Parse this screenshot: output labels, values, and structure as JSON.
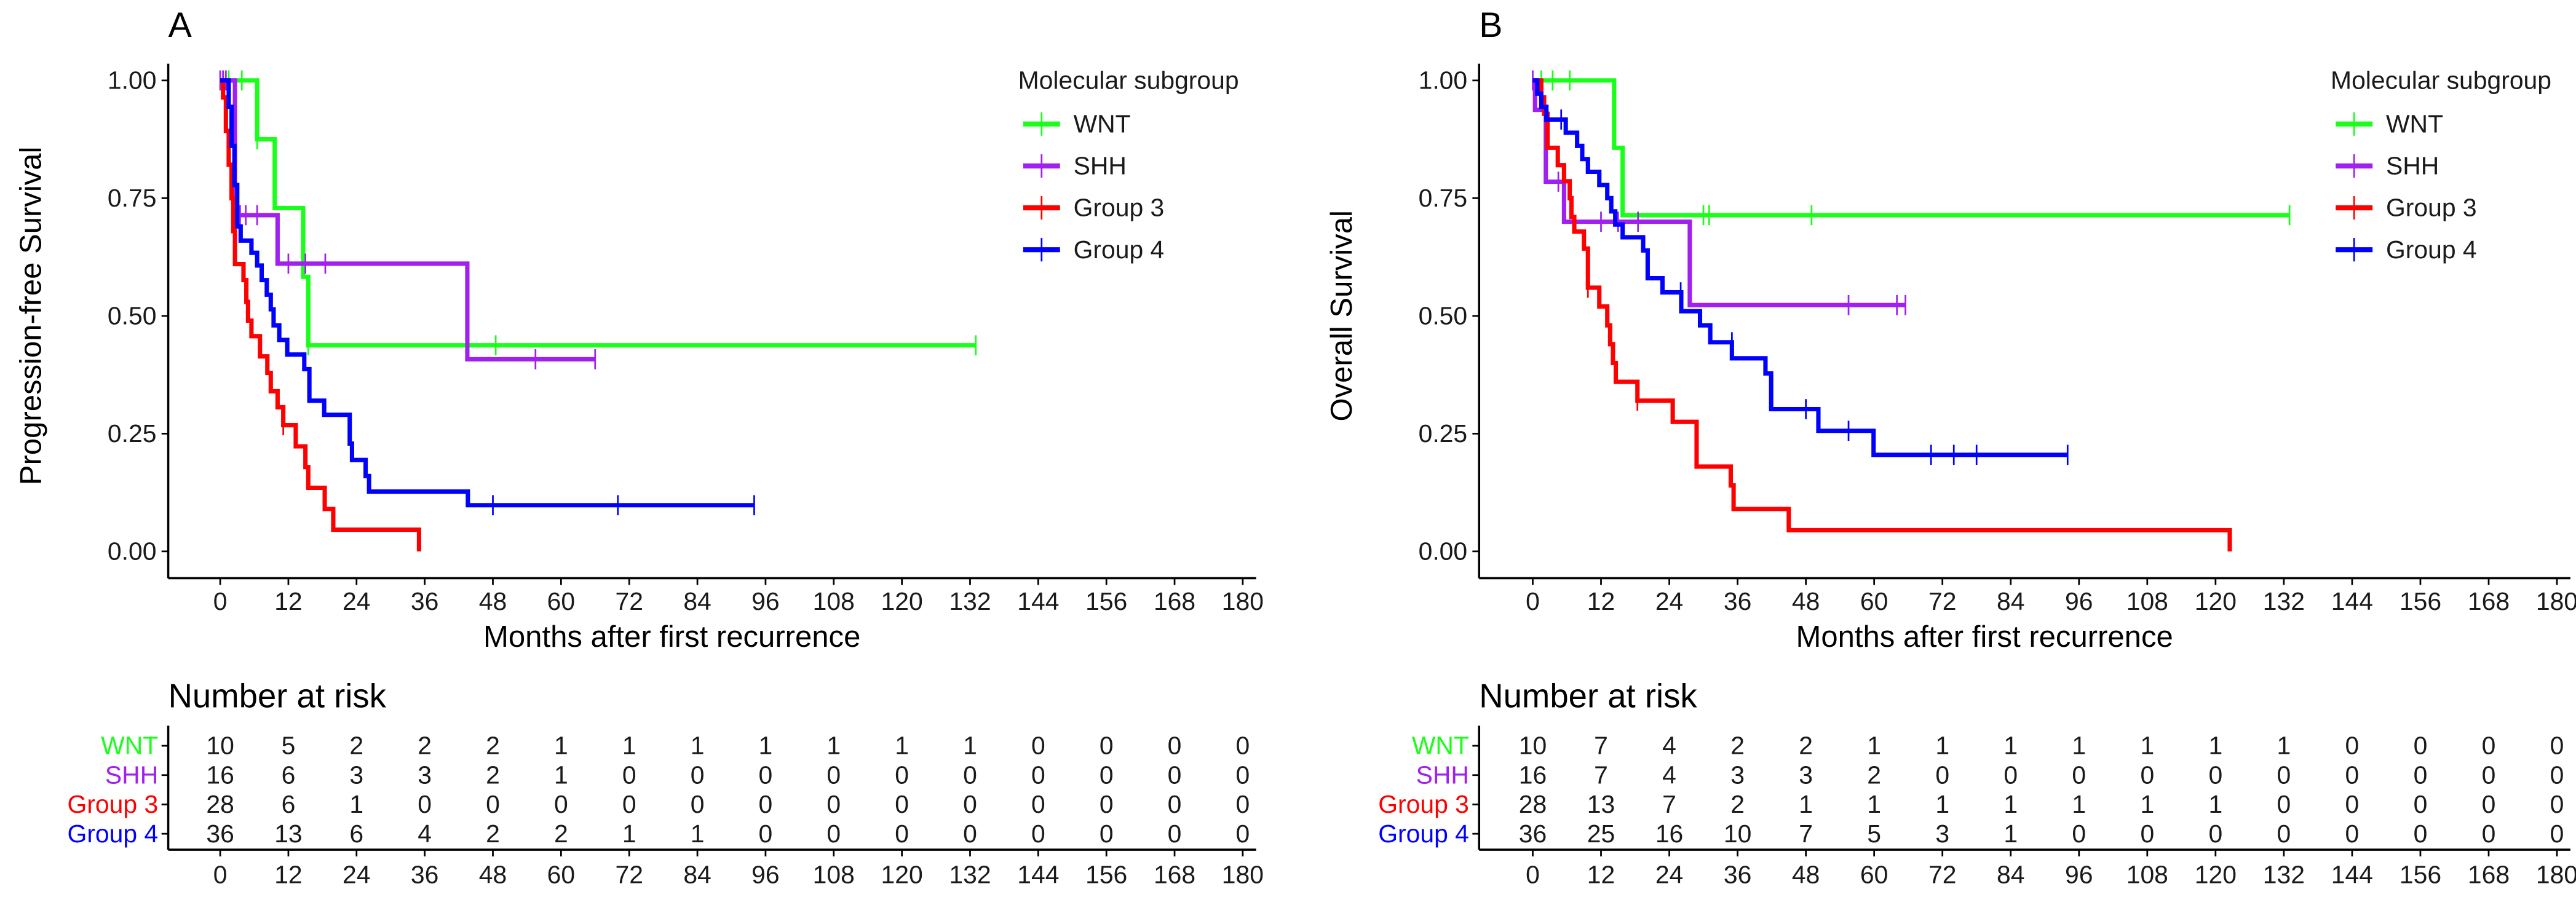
{
  "colors": {
    "WNT": "#1aff1a",
    "SHH": "#a020f0",
    "Group 3": "#ff0000",
    "Group 4": "#0000ff"
  },
  "chart_data": [
    {
      "type": "line",
      "panel_label": "A",
      "title": "",
      "xlabel": "Months after first recurrence",
      "ylabel": "Progression-free Survival",
      "xlim": [
        0,
        180
      ],
      "ylim": [
        0,
        1
      ],
      "xticks": [
        "0",
        "12",
        "24",
        "36",
        "48",
        "60",
        "72",
        "84",
        "96",
        "108",
        "120",
        "132",
        "144",
        "156",
        "168",
        "180"
      ],
      "yticks": [
        "0.00",
        "0.25",
        "0.50",
        "0.75",
        "1.00"
      ],
      "legend_title": "Molecular subgroup",
      "legend_position": "top-right",
      "series": [
        {
          "name": "WNT",
          "steps": [
            [
              6.5,
              0.875
            ],
            [
              9.6,
              0.729
            ],
            [
              14.6,
              0.583
            ],
            [
              15.5,
              0.4375
            ]
          ],
          "end": 133,
          "censors": [
            [
              0.5,
              1
            ],
            [
              1.5,
              1
            ],
            [
              3.8,
              1
            ],
            [
              6.5,
              0.875
            ],
            [
              15.5,
              0.4375
            ],
            [
              48.5,
              0.4375
            ],
            [
              133,
              0.4375
            ]
          ]
        },
        {
          "name": "SHH",
          "steps": [
            [
              2.6,
              0.714
            ],
            [
              10.1,
              0.611
            ],
            [
              43.5,
              0.408
            ]
          ],
          "end": 66,
          "censors": [
            [
              0,
              1
            ],
            [
              0.5,
              1
            ],
            [
              1,
              1
            ],
            [
              3.5,
              0.714
            ],
            [
              4.5,
              0.714
            ],
            [
              6.5,
              0.714
            ],
            [
              12,
              0.611
            ],
            [
              15,
              0.611
            ],
            [
              18.5,
              0.611
            ],
            [
              55.5,
              0.408
            ],
            [
              66,
              0.408
            ]
          ]
        },
        {
          "name": "Group 3",
          "steps": [
            [
              0.5,
              0.964
            ],
            [
              1,
              0.893
            ],
            [
              1.5,
              0.821
            ],
            [
              2,
              0.75
            ],
            [
              2.3,
              0.68
            ],
            [
              2.6,
              0.61
            ],
            [
              4.1,
              0.576
            ],
            [
              4.6,
              0.53
            ],
            [
              4.9,
              0.49
            ],
            [
              5.5,
              0.457
            ],
            [
              7,
              0.414
            ],
            [
              8.3,
              0.379
            ],
            [
              8.9,
              0.34
            ],
            [
              10.1,
              0.306
            ],
            [
              11.1,
              0.268
            ],
            [
              13.3,
              0.223
            ],
            [
              15,
              0.179
            ],
            [
              15.5,
              0.135
            ],
            [
              18.4,
              0.09
            ],
            [
              19.9,
              0.046
            ],
            [
              35,
              0
            ]
          ],
          "end": 35,
          "censors": [
            [
              11.1,
              0.268
            ]
          ]
        },
        {
          "name": "Group 4",
          "steps": [
            [
              1.5,
              0.944
            ],
            [
              2,
              0.861
            ],
            [
              2.5,
              0.778
            ],
            [
              3,
              0.69
            ],
            [
              3.6,
              0.66
            ],
            [
              5.5,
              0.634
            ],
            [
              6.5,
              0.607
            ],
            [
              7.3,
              0.576
            ],
            [
              8.2,
              0.545
            ],
            [
              8.9,
              0.514
            ],
            [
              9.4,
              0.48
            ],
            [
              10.4,
              0.449
            ],
            [
              11.8,
              0.418
            ],
            [
              14.8,
              0.387
            ],
            [
              15.7,
              0.32
            ],
            [
              18.3,
              0.29
            ],
            [
              22.8,
              0.229
            ],
            [
              23.2,
              0.194
            ],
            [
              25.6,
              0.16
            ],
            [
              26.2,
              0.127
            ],
            [
              43.6,
              0.098
            ]
          ],
          "end": 94,
          "censors": [
            [
              48,
              0.098
            ],
            [
              70,
              0.098
            ],
            [
              94,
              0.098
            ]
          ]
        }
      ],
      "risk_table": {
        "title": "Number at risk",
        "times": [
          "0",
          "12",
          "24",
          "36",
          "48",
          "60",
          "72",
          "84",
          "96",
          "108",
          "120",
          "132",
          "144",
          "156",
          "168",
          "180"
        ],
        "rows": [
          {
            "name": "WNT",
            "values": [
              "10",
              "5",
              "2",
              "2",
              "2",
              "1",
              "1",
              "1",
              "1",
              "1",
              "1",
              "1",
              "0",
              "0",
              "0",
              "0"
            ]
          },
          {
            "name": "SHH",
            "values": [
              "16",
              "6",
              "3",
              "3",
              "2",
              "1",
              "0",
              "0",
              "0",
              "0",
              "0",
              "0",
              "0",
              "0",
              "0",
              "0"
            ]
          },
          {
            "name": "Group 3",
            "values": [
              "28",
              "6",
              "1",
              "0",
              "0",
              "0",
              "0",
              "0",
              "0",
              "0",
              "0",
              "0",
              "0",
              "0",
              "0",
              "0"
            ]
          },
          {
            "name": "Group 4",
            "values": [
              "36",
              "13",
              "6",
              "4",
              "2",
              "2",
              "1",
              "1",
              "0",
              "0",
              "0",
              "0",
              "0",
              "0",
              "0",
              "0"
            ]
          }
        ]
      }
    },
    {
      "type": "line",
      "panel_label": "B",
      "title": "",
      "xlabel": "Months after first recurrence",
      "ylabel": "Overall Survival",
      "xlim": [
        0,
        180
      ],
      "ylim": [
        0,
        1
      ],
      "xticks": [
        "0",
        "12",
        "24",
        "36",
        "48",
        "60",
        "72",
        "84",
        "96",
        "108",
        "120",
        "132",
        "144",
        "156",
        "168",
        "180"
      ],
      "yticks": [
        "0.00",
        "0.25",
        "0.50",
        "0.75",
        "1.00"
      ],
      "legend_title": "Molecular subgroup",
      "legend_position": "top-right",
      "series": [
        {
          "name": "WNT",
          "steps": [
            [
              14.3,
              0.857
            ],
            [
              15.8,
              0.714
            ]
          ],
          "end": 133,
          "censors": [
            [
              1.5,
              1
            ],
            [
              3.5,
              1
            ],
            [
              6.5,
              1
            ],
            [
              30,
              0.714
            ],
            [
              31,
              0.714
            ],
            [
              49,
              0.714
            ],
            [
              133,
              0.714
            ]
          ]
        },
        {
          "name": "SHH",
          "steps": [
            [
              0.4,
              0.9375
            ],
            [
              2.3,
              0.785
            ],
            [
              5.5,
              0.7
            ],
            [
              27.6,
              0.523
            ]
          ],
          "end": 65.5,
          "censors": [
            [
              0,
              1
            ],
            [
              4.5,
              0.785
            ],
            [
              12,
              0.7
            ],
            [
              15,
              0.7
            ],
            [
              18.5,
              0.7
            ],
            [
              55.5,
              0.523
            ],
            [
              64,
              0.523
            ],
            [
              65.5,
              0.523
            ]
          ]
        },
        {
          "name": "Group 3",
          "steps": [
            [
              1.5,
              0.964
            ],
            [
              2,
              0.929
            ],
            [
              2.6,
              0.857
            ],
            [
              4.4,
              0.82
            ],
            [
              5.5,
              0.786
            ],
            [
              6.5,
              0.75
            ],
            [
              6.8,
              0.71
            ],
            [
              7.3,
              0.679
            ],
            [
              9,
              0.643
            ],
            [
              9.7,
              0.56
            ],
            [
              11.7,
              0.52
            ],
            [
              13.1,
              0.48
            ],
            [
              13.6,
              0.44
            ],
            [
              14.1,
              0.4
            ],
            [
              14.6,
              0.36
            ],
            [
              18.4,
              0.32
            ],
            [
              24.6,
              0.275
            ],
            [
              28.8,
              0.18
            ],
            [
              34.8,
              0.14
            ],
            [
              35.3,
              0.09
            ],
            [
              45,
              0.045
            ],
            [
              122.5,
              0
            ]
          ],
          "end": 122.5,
          "censors": [
            [
              18.4,
              0.32
            ],
            [
              9.7,
              0.56
            ]
          ]
        },
        {
          "name": "Group 4",
          "steps": [
            [
              0.8,
              0.972
            ],
            [
              1.5,
              0.944
            ],
            [
              2.4,
              0.917
            ],
            [
              5.8,
              0.889
            ],
            [
              7.8,
              0.861
            ],
            [
              8.7,
              0.833
            ],
            [
              9.7,
              0.806
            ],
            [
              11.7,
              0.778
            ],
            [
              13.1,
              0.75
            ],
            [
              13.8,
              0.722
            ],
            [
              14.5,
              0.694
            ],
            [
              15.8,
              0.667
            ],
            [
              19.4,
              0.639
            ],
            [
              20.2,
              0.58
            ],
            [
              22.8,
              0.55
            ],
            [
              26.1,
              0.51
            ],
            [
              29.4,
              0.48
            ],
            [
              31.2,
              0.444
            ],
            [
              35,
              0.41
            ],
            [
              40.9,
              0.378
            ],
            [
              41.9,
              0.302
            ],
            [
              50.2,
              0.256
            ],
            [
              59.9,
              0.205
            ]
          ],
          "end": 94,
          "censors": [
            [
              5,
              0.917
            ],
            [
              26,
              0.55
            ],
            [
              35,
              0.444
            ],
            [
              48,
              0.302
            ],
            [
              55.5,
              0.256
            ],
            [
              70,
              0.205
            ],
            [
              74,
              0.205
            ],
            [
              78,
              0.205
            ],
            [
              94,
              0.205
            ]
          ]
        }
      ],
      "risk_table": {
        "title": "Number at risk",
        "times": [
          "0",
          "12",
          "24",
          "36",
          "48",
          "60",
          "72",
          "84",
          "96",
          "108",
          "120",
          "132",
          "144",
          "156",
          "168",
          "180"
        ],
        "rows": [
          {
            "name": "WNT",
            "values": [
              "10",
              "7",
              "4",
              "2",
              "2",
              "1",
              "1",
              "1",
              "1",
              "1",
              "1",
              "1",
              "0",
              "0",
              "0",
              "0"
            ]
          },
          {
            "name": "SHH",
            "values": [
              "16",
              "7",
              "4",
              "3",
              "3",
              "2",
              "0",
              "0",
              "0",
              "0",
              "0",
              "0",
              "0",
              "0",
              "0",
              "0"
            ]
          },
          {
            "name": "Group 3",
            "values": [
              "28",
              "13",
              "7",
              "2",
              "1",
              "1",
              "1",
              "1",
              "1",
              "1",
              "1",
              "0",
              "0",
              "0",
              "0",
              "0"
            ]
          },
          {
            "name": "Group 4",
            "values": [
              "36",
              "25",
              "16",
              "10",
              "7",
              "5",
              "3",
              "1",
              "0",
              "0",
              "0",
              "0",
              "0",
              "0",
              "0",
              "0"
            ]
          }
        ]
      }
    }
  ]
}
